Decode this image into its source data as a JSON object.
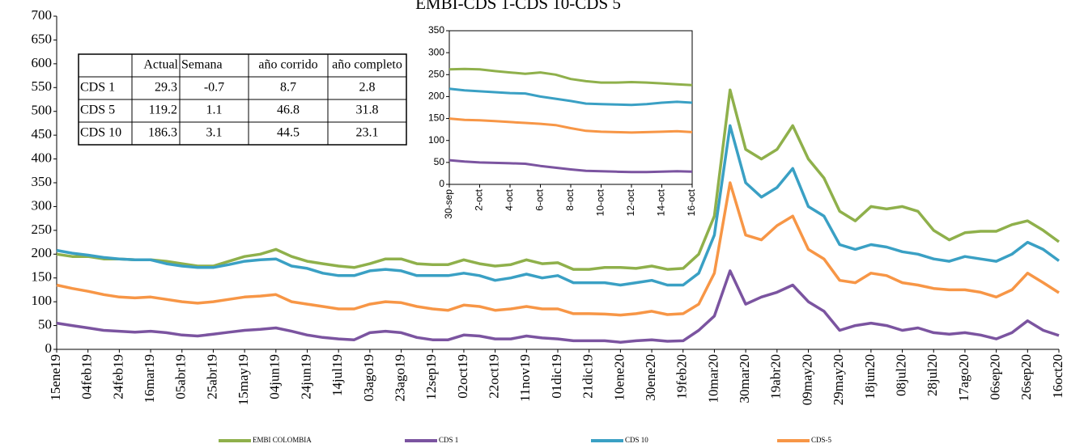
{
  "chart_data": [
    {
      "type": "line",
      "title": "EMBI-CDS 1-CDS 10-CDS 5",
      "categories": [
        "15ene19",
        null,
        "04feb19",
        null,
        "24feb19",
        null,
        "16mar19",
        null,
        "05abr19",
        null,
        "25abr19",
        null,
        "15may19",
        null,
        "04jun19",
        null,
        "24jun19",
        null,
        "14jul19",
        null,
        "03ago19",
        null,
        "23ago19",
        null,
        "12sep19",
        null,
        "02oct19",
        null,
        "22oct19",
        null,
        "11nov19",
        null,
        "01dic19",
        null,
        "21dic19",
        null,
        "10ene20",
        null,
        "30ene20",
        null,
        "19feb20",
        null,
        "10mar20",
        null,
        "30mar20",
        null,
        "19abr20",
        null,
        "09may20",
        null,
        "29may20",
        null,
        "18jun20",
        null,
        "08jul20",
        null,
        "28jul20",
        null,
        "17ago20",
        null,
        "06sep20",
        null,
        "26sep20",
        null,
        "16oct20"
      ],
      "series": [
        {
          "name": "EMBI COLOMBIA",
          "color": "#8fb04b",
          "values": [
            200,
            195,
            195,
            190,
            190,
            188,
            188,
            185,
            180,
            175,
            175,
            185,
            195,
            200,
            210,
            195,
            185,
            180,
            175,
            172,
            180,
            190,
            190,
            180,
            178,
            178,
            188,
            180,
            175,
            178,
            188,
            180,
            182,
            168,
            168,
            172,
            172,
            170,
            175,
            168,
            170,
            200,
            280,
            545,
            420,
            400,
            420,
            470,
            400,
            360,
            290,
            270,
            300,
            295,
            300,
            290,
            250,
            230,
            245,
            248,
            248,
            262,
            270,
            250,
            226
          ]
        },
        {
          "name": "CDS 1",
          "color": "#7b54a0",
          "values": [
            55,
            50,
            45,
            40,
            38,
            36,
            38,
            35,
            30,
            28,
            32,
            36,
            40,
            42,
            45,
            38,
            30,
            25,
            22,
            20,
            35,
            38,
            35,
            25,
            20,
            20,
            30,
            28,
            22,
            22,
            28,
            24,
            22,
            18,
            18,
            18,
            15,
            18,
            20,
            17,
            18,
            40,
            70,
            165,
            95,
            110,
            120,
            135,
            100,
            80,
            40,
            50,
            55,
            50,
            40,
            45,
            35,
            32,
            35,
            30,
            22,
            35,
            60,
            40,
            29
          ]
        },
        {
          "name": "CDS 10",
          "color": "#3aa0c4",
          "values": [
            208,
            202,
            198,
            193,
            190,
            188,
            188,
            180,
            175,
            172,
            172,
            178,
            185,
            188,
            190,
            175,
            170,
            160,
            155,
            155,
            165,
            168,
            165,
            155,
            155,
            155,
            160,
            155,
            145,
            150,
            158,
            150,
            155,
            140,
            140,
            140,
            135,
            140,
            145,
            135,
            135,
            160,
            240,
            470,
            350,
            320,
            340,
            380,
            300,
            280,
            220,
            210,
            220,
            215,
            205,
            200,
            190,
            185,
            195,
            190,
            185,
            200,
            225,
            210,
            186
          ]
        },
        {
          "name": "CDS-5",
          "color": "#f79646",
          "values": [
            135,
            128,
            122,
            115,
            110,
            108,
            110,
            105,
            100,
            97,
            100,
            105,
            110,
            112,
            115,
            100,
            95,
            90,
            85,
            85,
            95,
            100,
            98,
            90,
            85,
            82,
            93,
            90,
            82,
            85,
            90,
            85,
            85,
            75,
            75,
            74,
            72,
            75,
            80,
            73,
            75,
            95,
            160,
            350,
            240,
            230,
            260,
            280,
            210,
            190,
            145,
            140,
            160,
            155,
            140,
            135,
            128,
            125,
            125,
            120,
            110,
            125,
            160,
            140,
            119
          ]
        }
      ],
      "ylim": [
        0,
        700
      ],
      "yticks": [
        0,
        50,
        100,
        150,
        200,
        250,
        300,
        350,
        400,
        450,
        500,
        550,
        600,
        650,
        700
      ],
      "grid": false,
      "legend": "bottom"
    },
    {
      "type": "line",
      "categories": [
        "30-sep",
        null,
        "2-oct",
        null,
        "4-oct",
        null,
        "6-oct",
        null,
        "8-oct",
        null,
        "10-oct",
        null,
        "12-oct",
        null,
        "14-oct",
        null,
        "16-oct"
      ],
      "series": [
        {
          "color": "#8fb04b",
          "values": [
            262,
            263,
            262,
            258,
            255,
            252,
            255,
            250,
            240,
            235,
            232,
            232,
            233,
            232,
            230,
            228,
            226
          ]
        },
        {
          "color": "#3aa0c4",
          "values": [
            218,
            214,
            212,
            210,
            208,
            207,
            200,
            195,
            190,
            184,
            183,
            182,
            181,
            183,
            186,
            188,
            186
          ]
        },
        {
          "color": "#f79646",
          "values": [
            150,
            147,
            146,
            144,
            142,
            140,
            138,
            135,
            128,
            122,
            120,
            119,
            118,
            119,
            120,
            121,
            119
          ]
        },
        {
          "color": "#7b54a0",
          "values": [
            55,
            52,
            50,
            49,
            48,
            47,
            42,
            38,
            34,
            31,
            30,
            29,
            28,
            28,
            29,
            30,
            29
          ]
        }
      ],
      "ylim": [
        0,
        350
      ],
      "yticks": [
        0,
        50,
        100,
        150,
        200,
        250,
        300,
        350
      ],
      "grid": false
    }
  ],
  "table": {
    "headers": [
      "Actual",
      "Semana",
      "año corrido",
      "año completo"
    ],
    "rows": [
      [
        "CDS 1",
        29.3,
        -0.7,
        8.7,
        2.8
      ],
      [
        "CDS 5",
        119.2,
        1.1,
        46.8,
        31.8
      ],
      [
        "CDS 10",
        186.3,
        3.1,
        44.5,
        23.1
      ]
    ]
  }
}
